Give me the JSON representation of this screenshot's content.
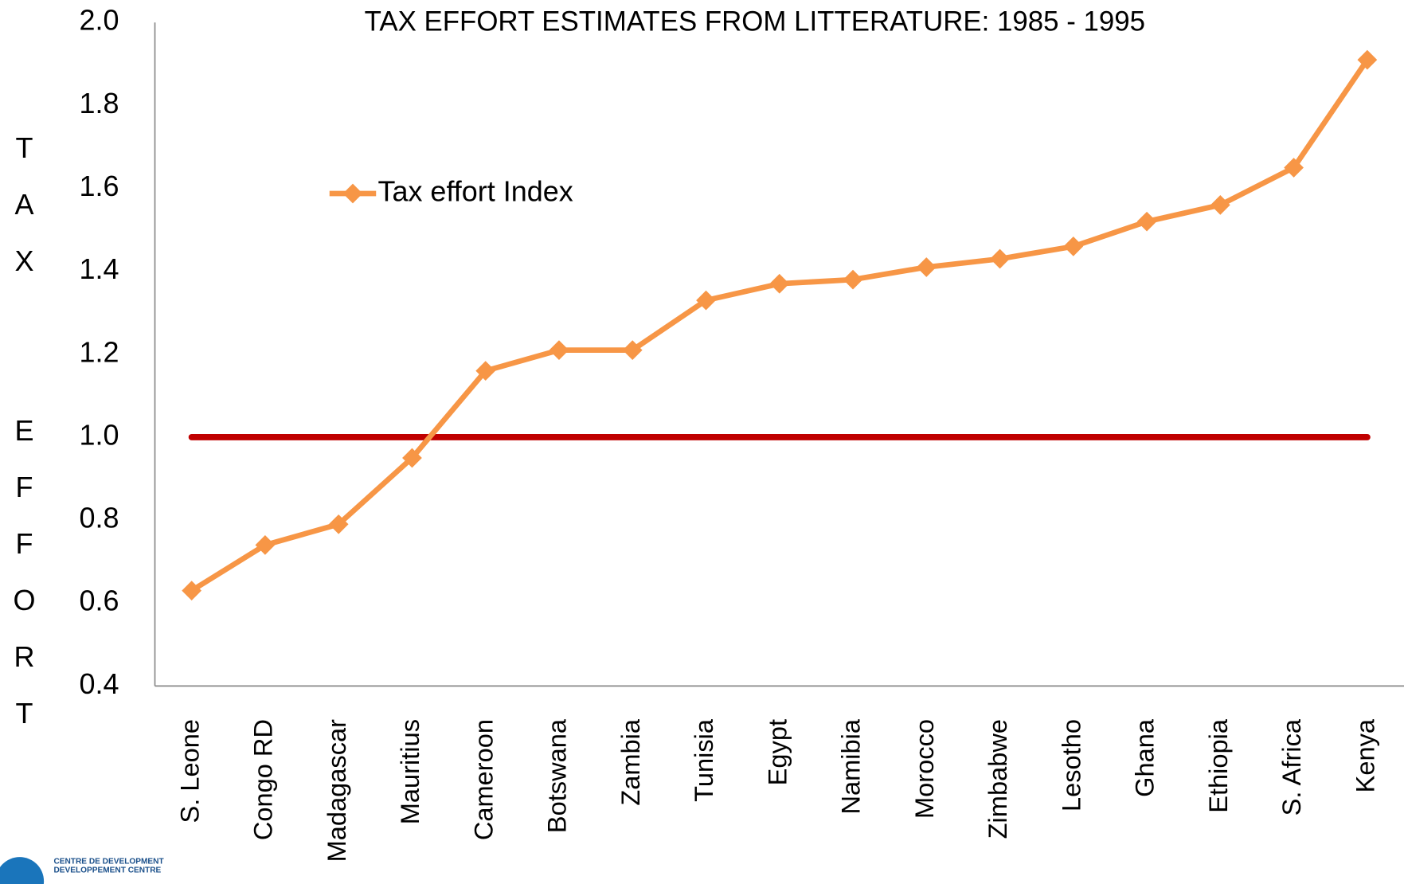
{
  "chart_data": {
    "type": "line",
    "title": "TAX EFFORT ESTIMATES FROM LITTERATURE: 1985 - 1995",
    "y_label": "TAX  EFFORT",
    "categories": [
      "S. Leone",
      "Congo RD",
      "Madagascar",
      "Mauritius",
      "Cameroon",
      "Botswana",
      "Zambia",
      "Tunisia",
      "Egypt",
      "Namibia",
      "Morocco",
      "Zimbabwe",
      "Lesotho",
      "Ghana",
      "Ethiopia",
      "S. Africa",
      "Kenya"
    ],
    "series": [
      {
        "name": "Tax effort Index",
        "color": "#f79646",
        "values": [
          0.63,
          0.74,
          0.79,
          0.95,
          1.16,
          1.21,
          1.21,
          1.33,
          1.37,
          1.38,
          1.41,
          1.43,
          1.46,
          1.52,
          1.56,
          1.65,
          1.91
        ]
      }
    ],
    "reference_line": {
      "value": 1.0,
      "color": "#c00000"
    },
    "ylim": [
      0.4,
      2.0
    ],
    "yticks": [
      0.4,
      0.6,
      0.8,
      {
        "value": 1.0,
        "label": "1.0"
      },
      1.2,
      1.4,
      1.6,
      1.8,
      {
        "value": 2.0,
        "label": "2.0"
      }
    ],
    "grid": false,
    "legend": "upper left"
  },
  "logo": {
    "line1": "CENTRE DE DEVELOPMENT",
    "line2": "DEVELOPPEMENT CENTRE"
  }
}
